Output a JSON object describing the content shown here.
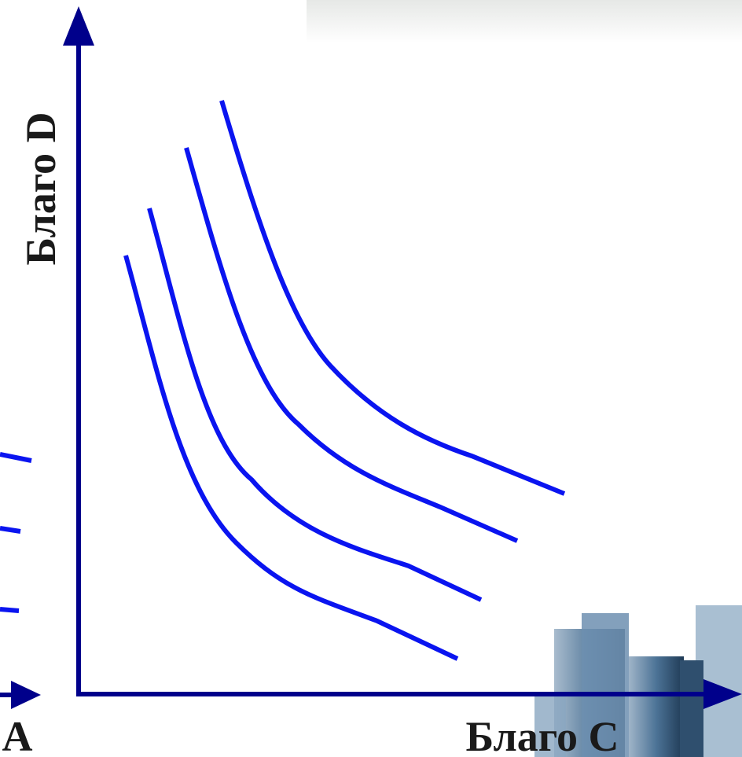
{
  "axes": {
    "y_label": "Благо D",
    "x_label": "Благо C"
  },
  "fragment_label": "A"
}
